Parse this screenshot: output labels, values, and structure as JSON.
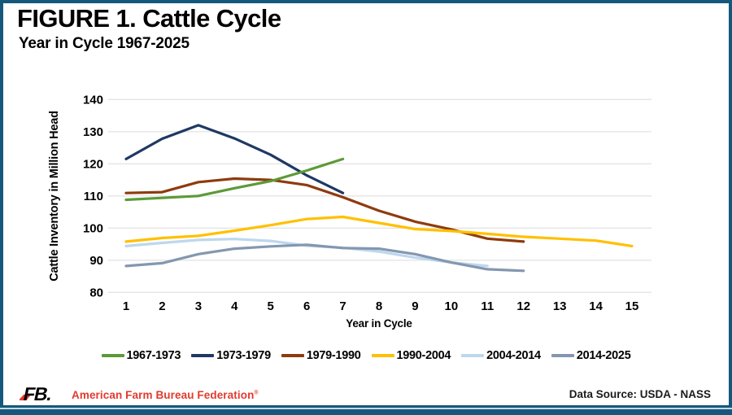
{
  "header": {
    "title": "FIGURE 1. Cattle Cycle",
    "subtitle": "Year in Cycle 1967-2025"
  },
  "chart_data": {
    "type": "line",
    "x": [
      1,
      2,
      3,
      4,
      5,
      6,
      7,
      8,
      9,
      10,
      11,
      12,
      13,
      14,
      15
    ],
    "xlabel": "Year in Cycle",
    "ylabel": "Cattle Inventory in Million Head",
    "ylim": [
      80,
      140
    ],
    "ytick_step": 10,
    "grid": true,
    "legend_position": "bottom",
    "series": [
      {
        "name": "1967-1973",
        "color": "#5C9A38",
        "values": [
          108.8,
          109.4,
          110.0,
          112.4,
          114.6,
          117.9,
          121.5
        ]
      },
      {
        "name": "1973-1979",
        "color": "#1F3864",
        "values": [
          121.5,
          127.8,
          132.0,
          127.9,
          122.8,
          116.4,
          110.9
        ]
      },
      {
        "name": "1979-1990",
        "color": "#8E3B0E",
        "values": [
          110.9,
          111.2,
          114.3,
          115.4,
          115.0,
          113.4,
          109.6,
          105.4,
          102.0,
          99.6,
          96.7,
          95.8
        ]
      },
      {
        "name": "1990-2004",
        "color": "#FFC000",
        "values": [
          95.8,
          96.9,
          97.6,
          99.2,
          100.9,
          102.8,
          103.5,
          101.6,
          99.7,
          99.1,
          98.2,
          97.3,
          96.7,
          96.1,
          94.4
        ]
      },
      {
        "name": "2004-2014",
        "color": "#BDD7EE",
        "values": [
          94.4,
          95.4,
          96.3,
          96.6,
          96.0,
          94.5,
          93.9,
          92.7,
          90.8,
          89.3,
          88.2
        ]
      },
      {
        "name": "2014-2025",
        "color": "#8497B0",
        "values": [
          88.2,
          89.1,
          91.9,
          93.6,
          94.3,
          94.8,
          93.8,
          93.6,
          91.9,
          89.3,
          87.2,
          86.7
        ]
      }
    ]
  },
  "footer": {
    "logo_text": "FB.",
    "org_name": "American Farm Bureau Federation",
    "registered_mark": "®",
    "data_source": "Data Source:  USDA - NASS"
  },
  "colors": {
    "border": "#15587C",
    "accent_red": "#E23A2E",
    "grid_line": "#E4E4E4",
    "text": "#000000"
  }
}
